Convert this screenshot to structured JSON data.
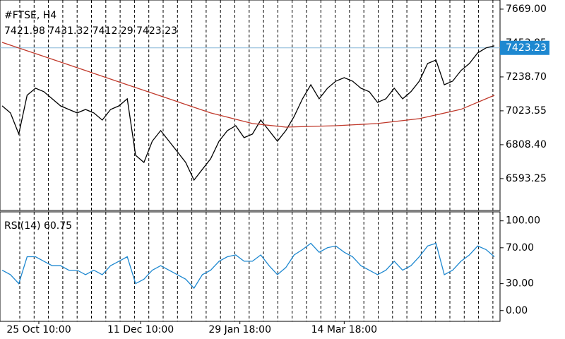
{
  "chart_data": [
    {
      "type": "line",
      "title": "#FTSE, H4",
      "ohlc": [
        7421.98,
        7431.32,
        7412.29,
        7423.23
      ],
      "xlim": [
        0,
        59
      ],
      "xticks": [
        {
          "value": 4.4,
          "label": "25 Oct 10:00"
        },
        {
          "value": 16.6,
          "label": "11 Dec 10:00"
        },
        {
          "value": 28.5,
          "label": "29 Jan 18:00"
        },
        {
          "value": 41,
          "label": "14 Mar 18:00"
        }
      ],
      "ylim": [
        6391,
        7727
      ],
      "yticks": [
        {
          "value": 6593.25,
          "label": "6593.25"
        },
        {
          "value": 6808.4,
          "label": "6808.40"
        },
        {
          "value": 7023.55,
          "label": "7023.55"
        },
        {
          "value": 7238.7,
          "label": "7238.70"
        },
        {
          "value": 7453.85,
          "label": "7453.85"
        },
        {
          "value": 7669,
          "label": "7669.00"
        }
      ],
      "price_line": 7423.23,
      "price_line_color": "#87b7d8",
      "series": [
        {
          "color": "#000000",
          "x": [
            0,
            1,
            2,
            3,
            4,
            5,
            6,
            7,
            8,
            9,
            10,
            11,
            12,
            13,
            14,
            15,
            16,
            17,
            18,
            19,
            20,
            21,
            22,
            23,
            24,
            25,
            26,
            27,
            28,
            29,
            30,
            31,
            32,
            33,
            34,
            35,
            36,
            37,
            38,
            39,
            40,
            41,
            42,
            43,
            44,
            45,
            46,
            47,
            48,
            49,
            50,
            51,
            52,
            53,
            54,
            55,
            56,
            57,
            58,
            59
          ],
          "values": [
            7055,
            7010,
            6876,
            7122,
            7167,
            7145,
            7100,
            7055,
            7032,
            7010,
            7032,
            7010,
            6965,
            7032,
            7055,
            7100,
            6741,
            6696,
            6831,
            6898,
            6831,
            6764,
            6696,
            6584,
            6652,
            6719,
            6831,
            6898,
            6929,
            6853,
            6876,
            6965,
            6898,
            6831,
            6898,
            6988,
            7100,
            7189,
            7100,
            7167,
            7212,
            7234,
            7212,
            7167,
            7145,
            7077,
            7100,
            7167,
            7100,
            7145,
            7212,
            7324,
            7346,
            7189,
            7212,
            7279,
            7324,
            7391,
            7423,
            7436
          ]
        },
        {
          "color": "#c0392b",
          "x": [
            0,
            5,
            10,
            15,
            20,
            25,
            30,
            34,
            40,
            45,
            50,
            55,
            59
          ],
          "values": [
            7458,
            7369,
            7279,
            7189,
            7100,
            7010,
            6943,
            6920,
            6929,
            6943,
            6974,
            7033,
            7122
          ]
        }
      ]
    },
    {
      "type": "line",
      "title": "RSI(14)",
      "value": 60.75,
      "xlim": [
        0,
        59
      ],
      "ylim": [
        -12,
        110
      ],
      "yticks": [
        {
          "value": 0,
          "label": "0.00"
        },
        {
          "value": 30,
          "label": "30.00"
        },
        {
          "value": 70,
          "label": "70.00"
        },
        {
          "value": 100,
          "label": "100.00"
        }
      ],
      "series": [
        {
          "color": "#1e88d0",
          "x": [
            0,
            1,
            2,
            3,
            4,
            5,
            6,
            7,
            8,
            9,
            10,
            11,
            12,
            13,
            14,
            15,
            16,
            17,
            18,
            19,
            20,
            21,
            22,
            23,
            24,
            25,
            26,
            27,
            28,
            29,
            30,
            31,
            32,
            33,
            34,
            35,
            36,
            37,
            38,
            39,
            40,
            41,
            42,
            43,
            44,
            45,
            46,
            47,
            48,
            49,
            50,
            51,
            52,
            53,
            54,
            55,
            56,
            57,
            58,
            59
          ],
          "values": [
            45,
            40,
            30,
            60,
            60,
            55,
            50,
            50,
            45,
            45,
            40,
            45,
            40,
            50,
            55,
            60,
            30,
            35,
            45,
            50,
            45,
            40,
            35,
            25,
            40,
            45,
            55,
            60,
            62,
            55,
            55,
            62,
            50,
            40,
            48,
            62,
            68,
            75,
            65,
            70,
            72,
            65,
            60,
            50,
            45,
            40,
            45,
            55,
            45,
            50,
            60,
            72,
            75,
            40,
            45,
            55,
            62,
            72,
            68,
            60
          ]
        }
      ]
    }
  ]
}
